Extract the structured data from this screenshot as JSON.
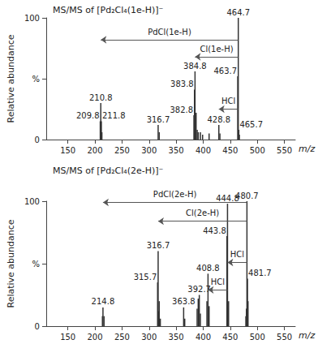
{
  "chart_data": [
    {
      "type": "bar",
      "title": "MS/MS of [Pd₂Cl₄(1e-H)]⁻",
      "xlabel": "m/z",
      "ylabel": "Relative abundance",
      "color": "#333333",
      "grid": false,
      "xlim": [
        110,
        570
      ],
      "xticks": [
        150,
        200,
        250,
        300,
        350,
        400,
        450,
        500,
        550
      ],
      "ylim": [
        0,
        100
      ],
      "yticks": [
        0,
        {
          "value": 50,
          "label": "%"
        },
        100
      ],
      "x": [
        209.8,
        210.8,
        211.8,
        212.8,
        316.7,
        318.7,
        382.8,
        383.8,
        384.8,
        385.8,
        386.8,
        388.8,
        390.8,
        394.8,
        398.8,
        410.8,
        428.8,
        430.8,
        463.7,
        464.7,
        465.7,
        466.7
      ],
      "values": [
        15,
        30,
        15,
        6,
        12,
        6,
        20,
        41,
        56,
        14,
        22,
        8,
        6,
        6,
        4,
        5,
        12,
        5,
        52,
        100,
        8,
        4
      ],
      "peak_labels": [
        "209.8",
        "210.8",
        "211.8",
        null,
        "316.7",
        null,
        "382.8",
        "383.8",
        "384.8",
        null,
        null,
        null,
        null,
        null,
        null,
        null,
        "428.8",
        null,
        "463.7",
        "464.7",
        "465.7",
        null
      ],
      "annotations": [
        {
          "text": "PdCl(1e-H)",
          "from": 464.7,
          "to": 210.8,
          "y": 82
        },
        {
          "text": "Cl(1e-H)",
          "from": 464.7,
          "to": 384.8,
          "y": 68
        },
        {
          "text": "HCl",
          "from": 464.7,
          "to": 428.8,
          "y": 25
        }
      ]
    },
    {
      "type": "bar",
      "title": "MS/MS of [Pd₂Cl₄(2e-H)]⁻",
      "xlabel": "m/z",
      "ylabel": "Relative abundance",
      "color": "#333333",
      "grid": false,
      "xlim": [
        110,
        570
      ],
      "xticks": [
        150,
        200,
        250,
        300,
        350,
        400,
        450,
        500,
        550
      ],
      "ylim": [
        0,
        100
      ],
      "yticks": [
        0,
        {
          "value": 50,
          "label": "%"
        },
        100
      ],
      "x": [
        213.8,
        214.8,
        216.8,
        315.7,
        316.7,
        317.7,
        318.7,
        320.7,
        363.8,
        365.8,
        388.7,
        390.7,
        392.7,
        394.7,
        406.8,
        408.8,
        410.8,
        443.8,
        444.8,
        445.8,
        446.8,
        478.7,
        479.7,
        480.7,
        481.7,
        482.7
      ],
      "values": [
        8,
        15,
        8,
        35,
        60,
        12,
        20,
        6,
        15,
        6,
        14,
        22,
        25,
        10,
        20,
        42,
        16,
        72,
        98,
        15,
        20,
        8,
        14,
        100,
        38,
        20
      ],
      "peak_labels": [
        null,
        "214.8",
        null,
        "315.7",
        "316.7",
        null,
        null,
        null,
        "363.8",
        null,
        null,
        null,
        "392.7",
        null,
        null,
        "408.8",
        null,
        "443.8",
        "444.8",
        null,
        null,
        null,
        null,
        "480.7",
        "481.7",
        null
      ],
      "annotations": [
        {
          "text": "PdCl(2e-H)",
          "from": 480.7,
          "to": 214.8,
          "y": 99
        },
        {
          "text": "Cl(2e-H)",
          "from": 480.7,
          "to": 316.7,
          "y": 84
        },
        {
          "text": "HCl",
          "from": 480.7,
          "to": 444.8,
          "y": 51
        },
        {
          "text": "HCl",
          "from": 444.8,
          "to": 408.8,
          "y": 29
        }
      ]
    }
  ]
}
